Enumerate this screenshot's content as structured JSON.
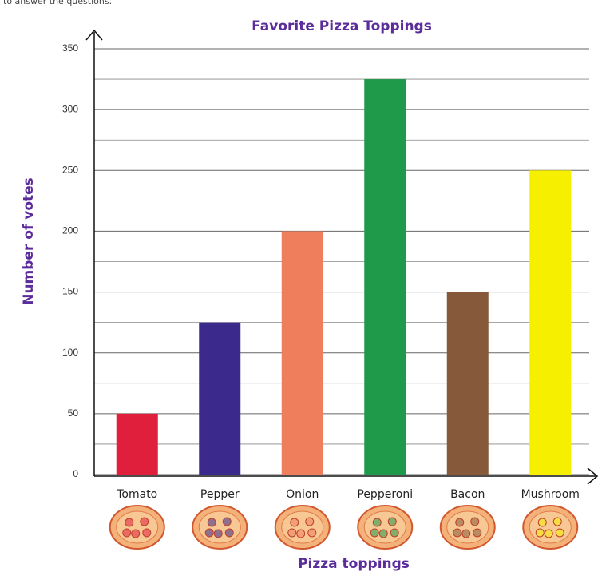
{
  "header_text": "to answer the questions.",
  "chart_data": {
    "type": "bar",
    "title": "Favorite Pizza Toppings",
    "x_label": "Pizza toppings",
    "y_label": "Number of votes",
    "categories": [
      "Tomato",
      "Pepper",
      "Onion",
      "Pepperoni",
      "Bacon",
      "Mushroom"
    ],
    "values": [
      50,
      125,
      200,
      325,
      150,
      250
    ],
    "colors": [
      "#e01f3d",
      "#3b2a8c",
      "#ef7e5c",
      "#1f9a4a",
      "#85593a",
      "#f6f000"
    ],
    "ylim": [
      0,
      350
    ],
    "yticks": [
      0,
      50,
      100,
      150,
      200,
      250,
      300,
      350
    ],
    "minor_gridlines": [
      25,
      75,
      125,
      175,
      225,
      275,
      325
    ],
    "grid": true
  }
}
